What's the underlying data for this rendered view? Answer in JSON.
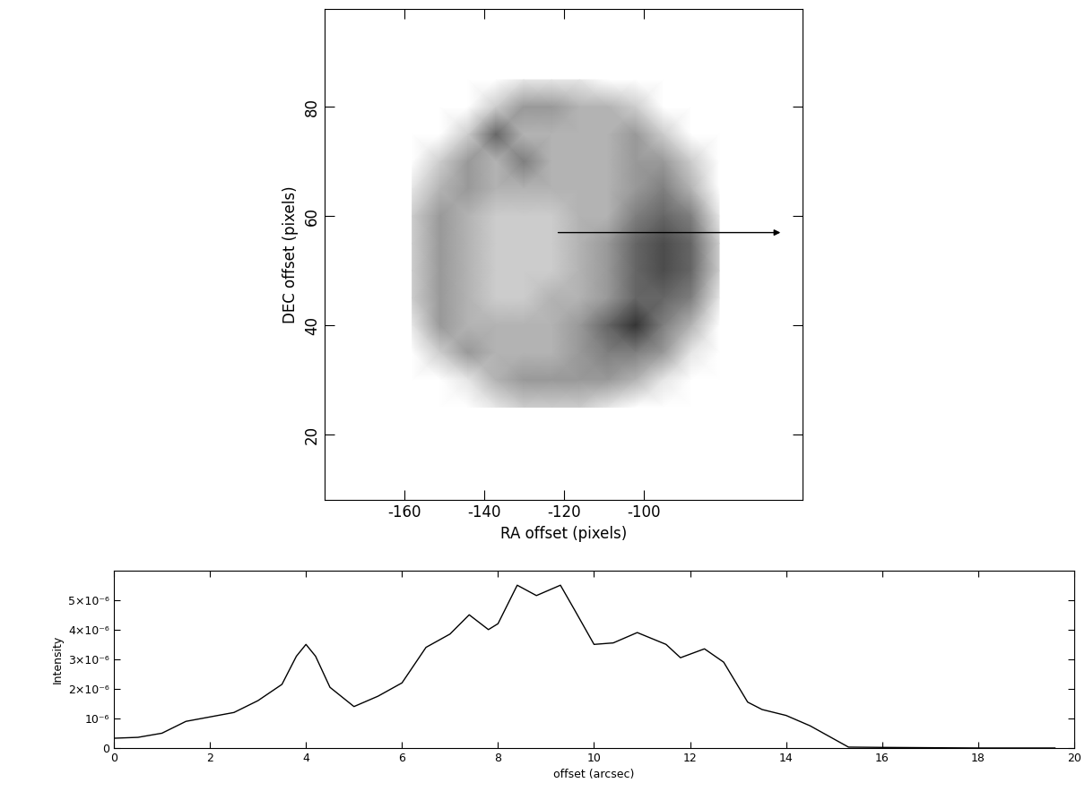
{
  "chart_data": [
    {
      "type": "heatmap",
      "x_label": "RA offset (pixels)",
      "y_label": "DEC offset (pixels)",
      "xlim": [
        -180,
        -60
      ],
      "ylim": [
        8,
        98
      ],
      "xticks": [
        -160,
        -140,
        -120,
        -100
      ],
      "yticks": [
        20,
        40,
        60,
        80
      ],
      "x": [
        -158,
        -151,
        -144,
        -137,
        -130,
        -123,
        -116,
        -109,
        -102,
        -95,
        -88,
        -81
      ],
      "y": [
        85,
        80,
        75,
        70,
        65,
        60,
        55,
        50,
        45,
        40,
        35,
        30,
        25
      ],
      "cells": [
        [
          0,
          0,
          0,
          0,
          1,
          1,
          1,
          0,
          0,
          0,
          0,
          0
        ],
        [
          0,
          0,
          0,
          2,
          4,
          4,
          3,
          3,
          2,
          0,
          0,
          0
        ],
        [
          0,
          0,
          2,
          6,
          3,
          3,
          3,
          3,
          4,
          2,
          0,
          0
        ],
        [
          0,
          2,
          4,
          3,
          5,
          3,
          3,
          3,
          4,
          4,
          2,
          0
        ],
        [
          1,
          3,
          4,
          3,
          3,
          3,
          3,
          3,
          4,
          5,
          3,
          0
        ],
        [
          2,
          4,
          3,
          2,
          2,
          2,
          3,
          3,
          5,
          6,
          5,
          1
        ],
        [
          2,
          4,
          3,
          2,
          2,
          2,
          3,
          4,
          6,
          7,
          6,
          2
        ],
        [
          2,
          4,
          3,
          2,
          2,
          2,
          3,
          4,
          6,
          7,
          6,
          2
        ],
        [
          2,
          4,
          3,
          2,
          2,
          3,
          3,
          4,
          6,
          6,
          5,
          1
        ],
        [
          1,
          4,
          3,
          3,
          3,
          3,
          4,
          6,
          8,
          5,
          3,
          0
        ],
        [
          0,
          2,
          4,
          3,
          3,
          3,
          4,
          5,
          5,
          4,
          1,
          0
        ],
        [
          0,
          0,
          1,
          3,
          4,
          4,
          4,
          4,
          3,
          1,
          0,
          0
        ],
        [
          0,
          0,
          0,
          1,
          2,
          2,
          2,
          1,
          0,
          0,
          0,
          0
        ]
      ],
      "clim": [
        0,
        10
      ],
      "arrow": {
        "from": [
          -122,
          57
        ],
        "to": [
          -65,
          57
        ]
      }
    },
    {
      "type": "line",
      "x_label": "offset (arcsec)",
      "y_label": "Intensity",
      "xlim": [
        0,
        20
      ],
      "ylim": [
        0,
        6e-06
      ],
      "xticks": [
        0,
        2,
        4,
        6,
        8,
        10,
        12,
        14,
        16,
        18,
        20
      ],
      "yticks": [
        0,
        {
          "value": 1e-06,
          "label": "10⁻⁶"
        },
        {
          "value": 2e-06,
          "label": "2×10⁻⁶"
        },
        {
          "value": 3e-06,
          "label": "3×10⁻⁶"
        },
        {
          "value": 4e-06,
          "label": "4×10⁻⁶"
        },
        {
          "value": 5e-06,
          "label": "5×10⁻⁶"
        }
      ],
      "color": "#000000",
      "x": [
        0,
        0.5,
        1.0,
        1.5,
        2.0,
        2.5,
        3.0,
        3.5,
        3.8,
        4.0,
        4.2,
        4.5,
        5.0,
        5.5,
        6.0,
        6.5,
        7.0,
        7.4,
        7.8,
        8.0,
        8.4,
        8.8,
        9.3,
        9.6,
        10.0,
        10.4,
        10.9,
        11.5,
        11.8,
        12.3,
        12.7,
        13.2,
        13.5,
        14.0,
        14.5,
        15.0,
        15.3,
        16.0,
        17.0,
        18.0,
        19.6
      ],
      "values": [
        3.3e-07,
        3.6e-07,
        5e-07,
        9e-07,
        1.05e-06,
        1.2e-06,
        1.6e-06,
        2.15e-06,
        3.1e-06,
        3.5e-06,
        3.1e-06,
        2.05e-06,
        1.4e-06,
        1.75e-06,
        2.2e-06,
        3.4e-06,
        3.85e-06,
        4.5e-06,
        4e-06,
        4.2e-06,
        5.5e-06,
        5.15e-06,
        5.5e-06,
        4.65e-06,
        3.5e-06,
        3.55e-06,
        3.9e-06,
        3.5e-06,
        3.05e-06,
        3.35e-06,
        2.9e-06,
        1.55e-06,
        1.3e-06,
        1.1e-06,
        7.5e-07,
        3e-07,
        3e-08,
        2e-08,
        1e-08,
        0,
        0
      ]
    }
  ]
}
